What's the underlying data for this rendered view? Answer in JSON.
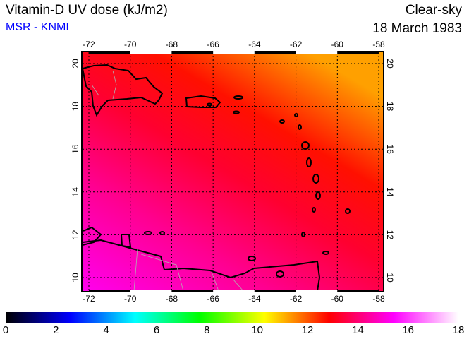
{
  "header": {
    "title": "Vitamin-D UV dose (kJ/m2)",
    "subtitle": "MSR - KNMI",
    "mode": "Clear-sky",
    "date": "18 March 1983"
  },
  "map": {
    "lon_labels": [
      "-72",
      "-70",
      "-68",
      "-66",
      "-64",
      "-62",
      "-60",
      "-58"
    ],
    "lat_labels": [
      "20",
      "18",
      "16",
      "14",
      "12",
      "10"
    ],
    "lon_range": [
      -72,
      -58
    ],
    "lat_range": [
      10,
      20
    ]
  },
  "colorbar": {
    "labels": [
      "0",
      "2",
      "4",
      "6",
      "8",
      "10",
      "12",
      "14",
      "16",
      "18"
    ],
    "range": [
      0,
      18
    ],
    "colors": [
      "#000000",
      "#0000ff",
      "#00ffff",
      "#00ff00",
      "#ffff00",
      "#ff0000",
      "#ff00ff",
      "#ffffff"
    ]
  }
}
